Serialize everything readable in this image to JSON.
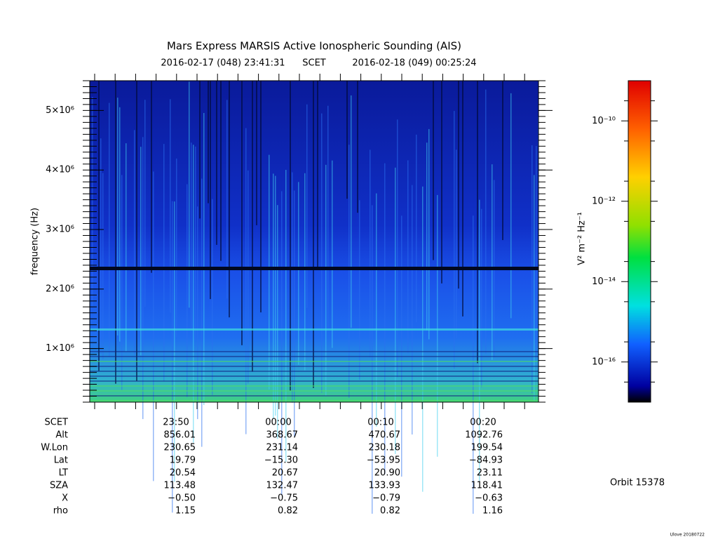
{
  "chart_data": {
    "type": "spectrogram",
    "title": "Mars Express MARSIS Active Ionospheric Sounding (AIS)",
    "subtitle": [
      "2016-02-17 (048) 23:41:31",
      "SCET",
      "2016-02-18 (049) 00:25:24"
    ],
    "ylabel": "frequency (Hz)",
    "ylim": [
      100000,
      5500000
    ],
    "yticks": [
      {
        "value": 1000000,
        "label": "1×10⁶"
      },
      {
        "value": 2000000,
        "label": "2×10⁶"
      },
      {
        "value": 3000000,
        "label": "3×10⁶"
      },
      {
        "value": 4000000,
        "label": "4×10⁶"
      },
      {
        "value": 5000000,
        "label": "5×10⁶"
      }
    ],
    "colorbar": {
      "label": "V² m⁻² Hz⁻¹",
      "log": true,
      "lim": [
        1e-17,
        1e-09
      ],
      "ticks": [
        {
          "value": 1e-10,
          "label": "10⁻¹⁰"
        },
        {
          "value": 1e-12,
          "label": "10⁻¹²"
        },
        {
          "value": 1e-14,
          "label": "10⁻¹⁴"
        },
        {
          "value": 1e-16,
          "label": "10⁻¹⁶"
        }
      ]
    },
    "ephemeris": {
      "labels": [
        "SCET",
        "Alt",
        "W.Lon",
        "Lat",
        "LT",
        "SZA",
        "X",
        "rho"
      ],
      "rows": [
        [
          "23:50",
          "00:00",
          "00:10",
          "00:20"
        ],
        [
          "856.01",
          "368.67",
          "470.67",
          "1092.76"
        ],
        [
          "230.65",
          "231.14",
          "230.18",
          "199.54"
        ],
        [
          "19.79",
          "−15.30",
          "−53.95",
          "−84.93"
        ],
        [
          "20.54",
          "20.67",
          "20.90",
          "23.11"
        ],
        [
          "113.48",
          "132.47",
          "133.93",
          "118.41"
        ],
        [
          "−0.50",
          "−0.75",
          "−0.79",
          "−0.63"
        ],
        [
          "1.15",
          "0.82",
          "0.82",
          "1.16"
        ]
      ]
    },
    "orbit": "Orbit 15378",
    "footer": "Ulove 20180722"
  }
}
